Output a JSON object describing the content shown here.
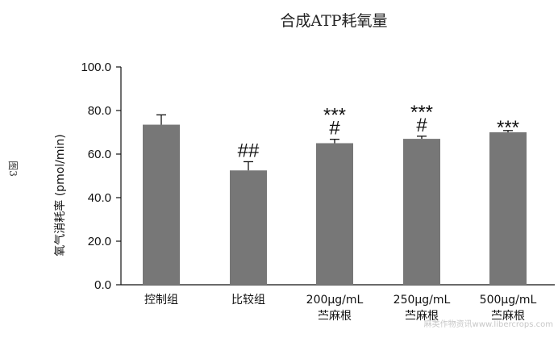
{
  "figure_label": "图3",
  "watermark": "麻类作物资讯www.libercrops.com",
  "chart_data": {
    "type": "bar",
    "title": "合成ATP耗氧量",
    "ylabel": "氧气消耗率 (pmol/min)",
    "xlabel": "",
    "ylim": [
      0,
      100
    ],
    "yticks": [
      "0.0",
      "20.0",
      "40.0",
      "60.0",
      "80.0",
      "100.0"
    ],
    "categories": [
      [
        "控制组"
      ],
      [
        "比较组"
      ],
      [
        "200μg/mL",
        "苎麻根"
      ],
      [
        "250μg/mL",
        "苎麻根"
      ],
      [
        "500μg/mL",
        "苎麻根"
      ]
    ],
    "values": [
      73.5,
      52.5,
      65.0,
      67.0,
      70.0
    ],
    "errors": [
      4.5,
      4.0,
      1.8,
      1.2,
      0.8
    ],
    "significance_upper": [
      "",
      "",
      "***",
      "***",
      "***"
    ],
    "significance_lower": [
      "",
      "##",
      "#",
      "#",
      ""
    ],
    "bar_color": "#777777",
    "grid": false
  }
}
